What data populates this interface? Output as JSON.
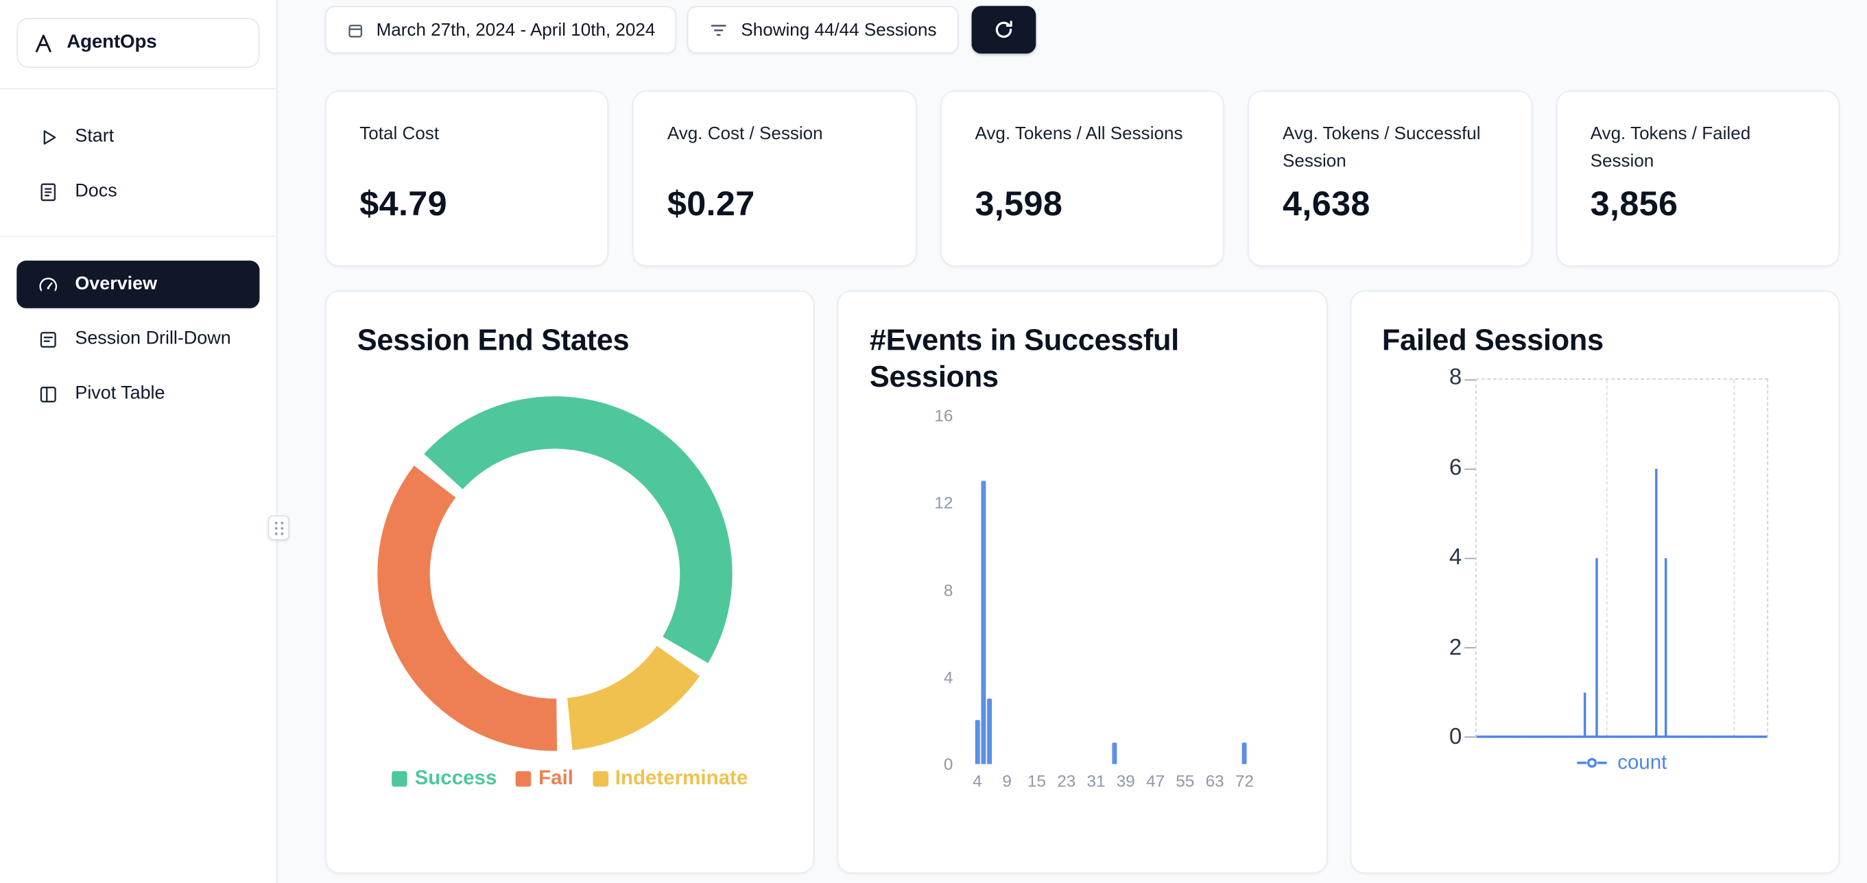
{
  "sidebar": {
    "brand": "AgentOps",
    "items": [
      {
        "label": "Start",
        "icon": "play-icon"
      },
      {
        "label": "Docs",
        "icon": "document-icon"
      },
      {
        "label": "Overview",
        "icon": "gauge-icon",
        "active": true
      },
      {
        "label": "Session Drill-Down",
        "icon": "list-box-icon"
      },
      {
        "label": "Pivot Table",
        "icon": "columns-icon"
      }
    ]
  },
  "topbar": {
    "date_range": "March 27th, 2024 - April 10th, 2024",
    "date_icon": "calendar-icon",
    "sessions_filter": "Showing 44/44 Sessions",
    "filter_icon": "filter-icon",
    "refresh_icon": "refresh-icon"
  },
  "stats": [
    {
      "label": "Total Cost",
      "value": "$4.79"
    },
    {
      "label": "Avg. Cost / Session",
      "value": "$0.27"
    },
    {
      "label": "Avg. Tokens / All Sessions",
      "value": "3,598"
    },
    {
      "label": "Avg. Tokens / Successful Session",
      "value": "4,638"
    },
    {
      "label": "Avg. Tokens / Failed Session",
      "value": "3,856"
    }
  ],
  "colors": {
    "navy": "#0f1729",
    "accent_blue": "#4f86e8",
    "success_green": "#4ec79b",
    "fail_orange": "#ee7f52",
    "indeterminate_yellow": "#f0c14e",
    "page_bg": "#f8fafc",
    "card_border": "#e2e8f0"
  },
  "chart_data": [
    {
      "type": "pie",
      "title": "Session End States",
      "donut": true,
      "start_angle_deg": -50,
      "gap_deg": 5,
      "slices": [
        {
          "label": "Success",
          "percent": 48,
          "color": "#4ec79b"
        },
        {
          "label": "Indeterminate",
          "percent": 15,
          "color": "#f0c14e"
        },
        {
          "label": "Fail",
          "percent": 37,
          "color": "#ee7f52"
        }
      ],
      "legend_order": [
        "Success",
        "Fail",
        "Indeterminate"
      ],
      "legend_position": "bottom"
    },
    {
      "type": "bar",
      "title": "#Events in Successful Sessions",
      "color": "#5b8fe8",
      "xticks": [
        4,
        9,
        15,
        23,
        31,
        39,
        47,
        55,
        63,
        72
      ],
      "yticks": [
        0,
        4,
        8,
        12,
        16
      ],
      "ylim": [
        0,
        16
      ],
      "bars": [
        {
          "x": 4,
          "count": 2
        },
        {
          "x": 5,
          "count": 13
        },
        {
          "x": 6,
          "count": 3
        },
        {
          "x": 36,
          "count": 1
        },
        {
          "x": 72,
          "count": 1
        }
      ],
      "xlabel": "",
      "ylabel": ""
    },
    {
      "type": "line",
      "title": "Failed Sessions",
      "yticks": [
        0,
        2,
        4,
        6,
        8
      ],
      "ylim": [
        0,
        8
      ],
      "grid": "dashed",
      "legend_position": "bottom",
      "series": [
        {
          "name": "count",
          "color": "#4f86e8",
          "baseline_value": 0,
          "points": [
            {
              "x_frac": 0.375,
              "value": 1
            },
            {
              "x_frac": 0.415,
              "value": 4
            },
            {
              "x_frac": 0.62,
              "value": 6
            },
            {
              "x_frac": 0.655,
              "value": 4
            }
          ]
        }
      ]
    }
  ]
}
